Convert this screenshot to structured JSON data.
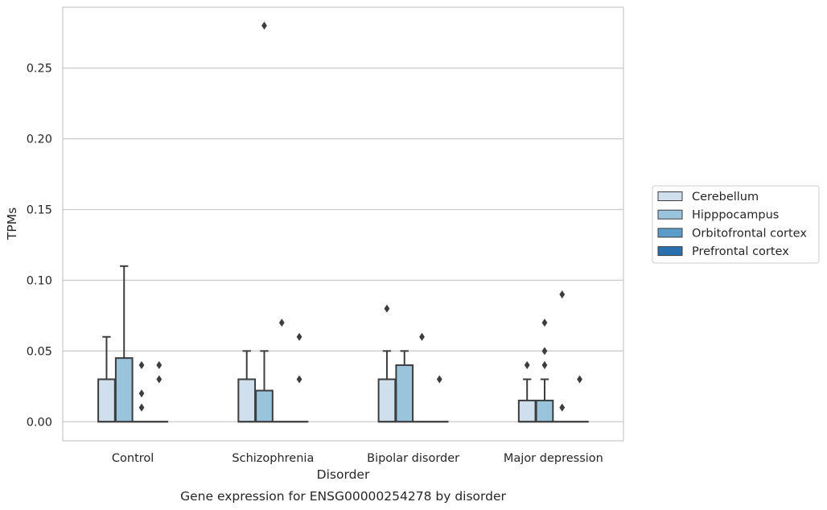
{
  "chart_data": {
    "type": "boxplot",
    "caption": "Gene expression for ENSG00000254278 by disorder",
    "xlabel": "Disorder",
    "ylabel": "TPMs",
    "ylim": [
      -0.0135,
      0.293
    ],
    "yticks": [
      0.0,
      0.05,
      0.1,
      0.15,
      0.2,
      0.25
    ],
    "ytick_labels": [
      "0.00",
      "0.05",
      "0.10",
      "0.15",
      "0.20",
      "0.25"
    ],
    "grid": "horizontal",
    "legend_position": "right",
    "categories": [
      "Control",
      "Schizophrenia",
      "Bipolar disorder",
      "Major depression"
    ],
    "series": [
      {
        "name": "Cerebellum",
        "color": "#d0dfee",
        "boxes": [
          {
            "q1": 0.0,
            "median": 0.0,
            "q3": 0.03,
            "whisker_low": 0.0,
            "whisker_high": 0.06,
            "outliers": []
          },
          {
            "q1": 0.0,
            "median": 0.0,
            "q3": 0.03,
            "whisker_low": 0.0,
            "whisker_high": 0.05,
            "outliers": []
          },
          {
            "q1": 0.0,
            "median": 0.0,
            "q3": 0.03,
            "whisker_low": 0.0,
            "whisker_high": 0.05,
            "outliers": [
              0.08
            ]
          },
          {
            "q1": 0.0,
            "median": 0.0,
            "q3": 0.015,
            "whisker_low": 0.0,
            "whisker_high": 0.03,
            "outliers": [
              0.04
            ]
          }
        ]
      },
      {
        "name": "Hipppocampus",
        "color": "#9ac3dc",
        "boxes": [
          {
            "q1": 0.0,
            "median": 0.0,
            "q3": 0.045,
            "whisker_low": 0.0,
            "whisker_high": 0.11,
            "outliers": []
          },
          {
            "q1": 0.0,
            "median": 0.0,
            "q3": 0.022,
            "whisker_low": 0.0,
            "whisker_high": 0.05,
            "outliers": [
              0.28
            ]
          },
          {
            "q1": 0.0,
            "median": 0.0,
            "q3": 0.04,
            "whisker_low": 0.0,
            "whisker_high": 0.05,
            "outliers": []
          },
          {
            "q1": 0.0,
            "median": 0.0,
            "q3": 0.015,
            "whisker_low": 0.0,
            "whisker_high": 0.03,
            "outliers": [
              0.04,
              0.05,
              0.07
            ]
          }
        ]
      },
      {
        "name": "Orbitofrontal cortex",
        "color": "#5a9bc9",
        "boxes": [
          {
            "q1": 0.0,
            "median": 0.0,
            "q3": 0.0,
            "whisker_low": 0.0,
            "whisker_high": 0.0,
            "outliers": [
              0.01,
              0.02,
              0.04
            ]
          },
          {
            "q1": 0.0,
            "median": 0.0,
            "q3": 0.0,
            "whisker_low": 0.0,
            "whisker_high": 0.0,
            "outliers": [
              0.07
            ]
          },
          {
            "q1": 0.0,
            "median": 0.0,
            "q3": 0.0,
            "whisker_low": 0.0,
            "whisker_high": 0.0,
            "outliers": [
              0.06
            ]
          },
          {
            "q1": 0.0,
            "median": 0.0,
            "q3": 0.0,
            "whisker_low": 0.0,
            "whisker_high": 0.0,
            "outliers": [
              0.01,
              0.09
            ]
          }
        ]
      },
      {
        "name": "Prefrontal cortex",
        "color": "#2a6fae",
        "boxes": [
          {
            "q1": 0.0,
            "median": 0.0,
            "q3": 0.0,
            "whisker_low": 0.0,
            "whisker_high": 0.0,
            "outliers": [
              0.03,
              0.04
            ]
          },
          {
            "q1": 0.0,
            "median": 0.0,
            "q3": 0.0,
            "whisker_low": 0.0,
            "whisker_high": 0.0,
            "outliers": [
              0.03,
              0.06
            ]
          },
          {
            "q1": 0.0,
            "median": 0.0,
            "q3": 0.0,
            "whisker_low": 0.0,
            "whisker_high": 0.0,
            "outliers": [
              0.03
            ]
          },
          {
            "q1": 0.0,
            "median": 0.0,
            "q3": 0.0,
            "whisker_low": 0.0,
            "whisker_high": 0.0,
            "outliers": [
              0.03
            ]
          }
        ]
      }
    ]
  }
}
